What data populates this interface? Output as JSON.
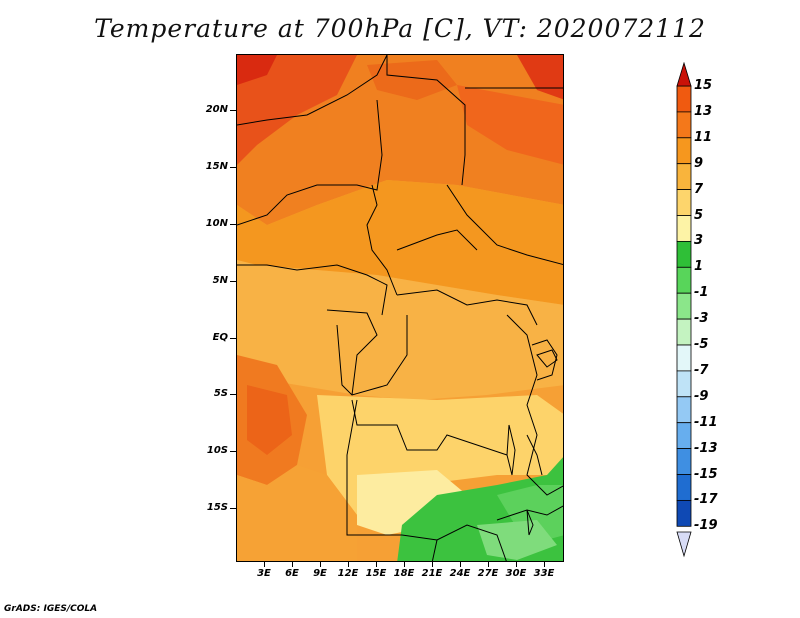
{
  "title": "Temperature at 700hPa [C], VT: 2020072112",
  "credit": "GrADS: IGES/COLA",
  "lat_labels": [
    "20N",
    "15N",
    "10N",
    "5N",
    "EQ",
    "5S",
    "10S",
    "15S"
  ],
  "lon_labels": [
    "3E",
    "6E",
    "9E",
    "12E",
    "15E",
    "18E",
    "21E",
    "24E",
    "27E",
    "30E",
    "33E"
  ],
  "colorbar": {
    "labels": [
      "15",
      "13",
      "11",
      "9",
      "7",
      "5",
      "3",
      "1",
      "-1",
      "-3",
      "-5",
      "-7",
      "-9",
      "-11",
      "-13",
      "-15",
      "-17",
      "-19"
    ],
    "colors": [
      "#e02b0b",
      "#f05a10",
      "#f4781a",
      "#f6971e",
      "#f9b43c",
      "#fdd56c",
      "#fdf3a6",
      "#2fbf37",
      "#58d55a",
      "#8be68a",
      "#c4f3c1",
      "#e3f7f9",
      "#bfe3f7",
      "#94c9f4",
      "#67aeee",
      "#3f8fe2",
      "#1f6dd1",
      "#0f49b4",
      "#08237d"
    ]
  },
  "legend_extends": {
    "top": "#c91208",
    "bottom": "#d8dcf6"
  }
}
